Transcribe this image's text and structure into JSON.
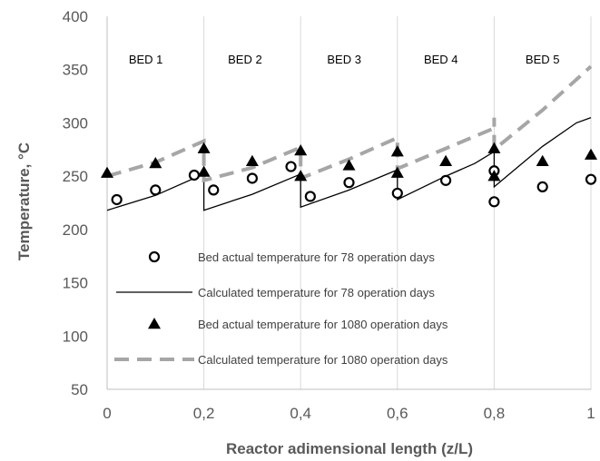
{
  "chart_data": {
    "type": "line",
    "xlabel": "Reactor adimensional length (z/L)",
    "ylabel": "Temperature, °C",
    "xlim": [
      0,
      1
    ],
    "ylim": [
      50,
      400
    ],
    "xticks": [
      0,
      0.2,
      0.4,
      0.6,
      0.8,
      1
    ],
    "xtick_labels": [
      "0",
      "0,2",
      "0,4",
      "0,6",
      "0,8",
      "1"
    ],
    "yticks": [
      50,
      100,
      150,
      200,
      250,
      300,
      350,
      400
    ],
    "ytick_labels": [
      "50",
      "100",
      "150",
      "200",
      "250",
      "300",
      "350",
      "400"
    ],
    "grid": "vertical-major",
    "bed_labels": [
      {
        "text": "BED 1",
        "x": 0.08
      },
      {
        "text": "BED 2",
        "x": 0.285
      },
      {
        "text": "BED 3",
        "x": 0.49
      },
      {
        "text": "BED 4",
        "x": 0.69
      },
      {
        "text": "BED 5",
        "x": 0.9
      }
    ],
    "series": [
      {
        "name": "Bed actual temperature for 78 operation days",
        "style": "circle-marker",
        "color": "#000000",
        "points": [
          [
            0.02,
            228
          ],
          [
            0.1,
            237
          ],
          [
            0.18,
            251
          ],
          [
            0.22,
            237
          ],
          [
            0.3,
            248
          ],
          [
            0.38,
            259
          ],
          [
            0.42,
            231
          ],
          [
            0.5,
            244
          ],
          [
            0.6,
            234
          ],
          [
            0.7,
            246
          ],
          [
            0.8,
            255
          ],
          [
            0.8,
            226
          ],
          [
            0.9,
            240
          ],
          [
            1.0,
            247
          ]
        ]
      },
      {
        "name": "Calculated temperature for 78 operation days",
        "style": "solid-line",
        "color": "#000000",
        "points": [
          [
            0,
            218
          ],
          [
            0.1,
            232
          ],
          [
            0.2,
            252
          ],
          [
            0.2,
            218
          ],
          [
            0.3,
            233
          ],
          [
            0.4,
            252
          ],
          [
            0.4,
            221
          ],
          [
            0.5,
            237
          ],
          [
            0.6,
            256
          ],
          [
            0.6,
            228
          ],
          [
            0.7,
            250
          ],
          [
            0.76,
            262
          ],
          [
            0.8,
            273
          ],
          [
            0.8,
            240
          ],
          [
            0.9,
            278
          ],
          [
            0.97,
            300
          ],
          [
            1.0,
            305
          ]
        ]
      },
      {
        "name": "Bed actual temperature for 1080 operation days",
        "style": "triangle-marker",
        "color": "#000000",
        "points": [
          [
            0,
            253
          ],
          [
            0.1,
            262
          ],
          [
            0.2,
            276
          ],
          [
            0.2,
            254
          ],
          [
            0.3,
            264
          ],
          [
            0.4,
            274
          ],
          [
            0.4,
            250
          ],
          [
            0.5,
            260
          ],
          [
            0.6,
            273
          ],
          [
            0.6,
            253
          ],
          [
            0.7,
            264
          ],
          [
            0.8,
            276
          ],
          [
            0.8,
            250
          ],
          [
            0.9,
            264
          ],
          [
            1.0,
            270
          ]
        ]
      },
      {
        "name": "Calculated temperature for 1080 operation days",
        "style": "dashed-line",
        "color": "#a6a6a6",
        "points": [
          [
            0,
            250
          ],
          [
            0.1,
            263
          ],
          [
            0.2,
            283
          ],
          [
            0.2,
            246
          ],
          [
            0.3,
            258
          ],
          [
            0.4,
            277
          ],
          [
            0.4,
            248
          ],
          [
            0.5,
            266
          ],
          [
            0.6,
            286
          ],
          [
            0.6,
            257
          ],
          [
            0.7,
            276
          ],
          [
            0.8,
            295
          ],
          [
            0.8,
            305
          ],
          [
            0.8,
            275
          ],
          [
            0.9,
            312
          ],
          [
            1.0,
            353
          ]
        ]
      }
    ]
  }
}
